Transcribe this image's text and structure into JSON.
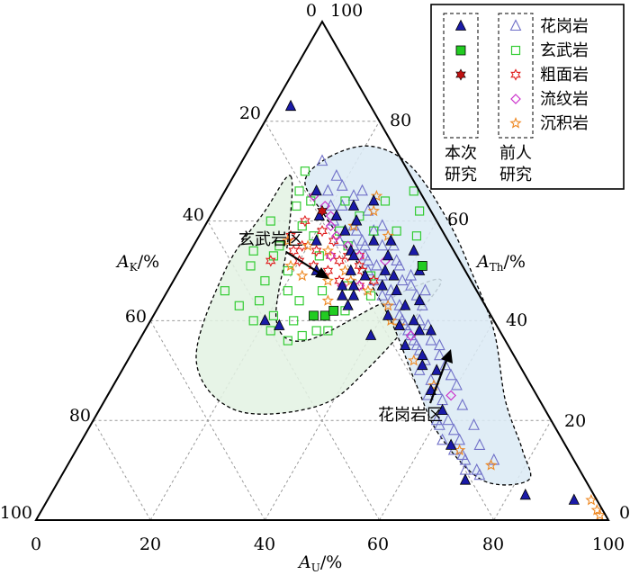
{
  "chart_data": {
    "type": "scatter",
    "subtype": "ternary",
    "axes": {
      "bottom": {
        "label_main": "A",
        "label_sub": "U",
        "label_suffix": "/%",
        "ticks": [
          "0",
          "20",
          "40",
          "60",
          "80",
          "100"
        ]
      },
      "left": {
        "label_main": "A",
        "label_sub": "K",
        "label_suffix": "/%",
        "ticks": [
          "0",
          "20",
          "40",
          "60",
          "80",
          "100"
        ]
      },
      "right": {
        "label_main": "A",
        "label_sub": "Th",
        "label_suffix": "/%",
        "ticks": [
          "0",
          "20",
          "40",
          "60",
          "80",
          "100"
        ]
      }
    },
    "legend": {
      "placement": "top-right",
      "groups": [
        {
          "title_line1": "本次",
          "title_line2": "研究"
        },
        {
          "title_line1": "前人",
          "title_line2": "研究"
        }
      ],
      "entries": [
        "花岗岩",
        "玄武岩",
        "粗面岩",
        "流纹岩",
        "沉积岩"
      ]
    },
    "regions": [
      {
        "name": "玄武岩区",
        "color": "#e3f2e3",
        "stroke": "#000000",
        "polygon": [
          [
            10,
            69
          ],
          [
            16,
            56
          ],
          [
            22,
            40
          ],
          [
            29,
            36
          ],
          [
            38,
            43
          ],
          [
            43,
            47
          ],
          [
            47,
            47
          ],
          [
            43,
            31
          ],
          [
            38,
            23
          ],
          [
            24,
            22
          ],
          [
            12,
            32
          ],
          [
            8,
            50
          ],
          [
            9,
            62
          ]
        ]
      },
      {
        "name": "花岗岩区",
        "color": "#dbeaf5",
        "stroke": "#000000",
        "polygon": [
          [
            15,
            73
          ],
          [
            13,
            68
          ],
          [
            20,
            61
          ],
          [
            31,
            51
          ],
          [
            42,
            40
          ],
          [
            53,
            27
          ],
          [
            62,
            17
          ],
          [
            74,
            8
          ],
          [
            82,
            8
          ],
          [
            78,
            14
          ],
          [
            70,
            24
          ],
          [
            61,
            38
          ],
          [
            51,
            50
          ],
          [
            42,
            60
          ],
          [
            30,
            71
          ],
          [
            21,
            75
          ]
        ]
      }
    ],
    "series": [
      {
        "name": "花岗岩",
        "group": "本次研究",
        "marker": "filled-triangle",
        "color": "#1a1aa8",
        "points": [
          [
            3,
            83
          ],
          [
            16,
            66
          ],
          [
            19,
            61
          ],
          [
            22,
            61
          ],
          [
            25,
            58
          ],
          [
            28,
            54
          ],
          [
            33,
            49
          ],
          [
            37,
            47
          ],
          [
            43,
            43
          ],
          [
            48,
            38
          ],
          [
            55,
            30
          ],
          [
            60,
            22
          ],
          [
            65,
            15
          ],
          [
            71,
            8
          ],
          [
            83,
            5
          ],
          [
            92,
            4
          ],
          [
            29,
            53
          ],
          [
            30,
            50
          ],
          [
            31,
            56
          ],
          [
            35,
            53
          ],
          [
            36,
            50
          ],
          [
            38,
            49
          ],
          [
            40,
            46
          ],
          [
            33,
            45
          ],
          [
            41,
            41
          ],
          [
            46,
            40
          ],
          [
            44,
            39
          ],
          [
            51,
            33
          ],
          [
            52,
            31
          ],
          [
            56,
            26
          ],
          [
            39,
            54
          ],
          [
            26,
            60
          ],
          [
            24,
            50
          ],
          [
            21,
            56
          ],
          [
            42,
            50
          ],
          [
            45,
            44
          ],
          [
            34,
            56
          ],
          [
            31,
            45
          ],
          [
            50,
            38
          ],
          [
            32,
            47
          ],
          [
            23,
            39
          ],
          [
            20,
            40
          ],
          [
            24,
            63
          ],
          [
            27,
            64
          ],
          [
            40,
            37
          ],
          [
            47,
            35
          ],
          [
            30,
            47
          ],
          [
            33,
            43
          ]
        ]
      },
      {
        "name": "花岗岩",
        "group": "前人研究",
        "marker": "open-triangle",
        "color": "#7070c8",
        "points": [
          [
            14,
            72
          ],
          [
            18,
            66
          ],
          [
            20,
            63
          ],
          [
            22,
            60
          ],
          [
            25,
            56
          ],
          [
            28,
            55
          ],
          [
            31,
            53
          ],
          [
            33,
            50
          ],
          [
            35,
            48
          ],
          [
            38,
            45
          ],
          [
            40,
            44
          ],
          [
            43,
            41
          ],
          [
            45,
            39
          ],
          [
            48,
            36
          ],
          [
            50,
            34
          ],
          [
            52,
            32
          ],
          [
            55,
            28
          ],
          [
            57,
            26
          ],
          [
            59,
            24
          ],
          [
            62,
            20
          ],
          [
            64,
            18
          ],
          [
            66,
            16
          ],
          [
            69,
            12
          ],
          [
            72,
            10
          ],
          [
            74,
            12
          ],
          [
            70,
            15
          ],
          [
            67,
            19
          ],
          [
            63,
            23
          ],
          [
            60,
            27
          ],
          [
            56,
            31
          ],
          [
            53,
            35
          ],
          [
            49,
            39
          ],
          [
            46,
            43
          ],
          [
            42,
            47
          ],
          [
            38,
            51
          ],
          [
            35,
            55
          ],
          [
            31,
            59
          ],
          [
            27,
            62
          ],
          [
            24,
            66
          ],
          [
            22,
            63
          ],
          [
            26,
            59
          ],
          [
            29,
            56
          ],
          [
            32,
            52
          ],
          [
            36,
            49
          ],
          [
            39,
            46
          ],
          [
            42,
            43
          ],
          [
            46,
            38
          ],
          [
            49,
            35
          ],
          [
            52,
            30
          ],
          [
            56,
            25
          ],
          [
            61,
            19
          ],
          [
            66,
            14
          ],
          [
            70,
            10
          ],
          [
            58,
            29
          ],
          [
            54,
            33
          ],
          [
            51,
            36
          ],
          [
            47,
            40
          ],
          [
            44,
            45
          ],
          [
            40,
            48
          ],
          [
            37,
            52
          ],
          [
            33,
            55
          ],
          [
            30,
            58
          ],
          [
            27,
            58
          ],
          [
            30,
            55
          ],
          [
            34,
            51
          ],
          [
            44,
            40
          ],
          [
            47,
            37
          ],
          [
            60,
            20
          ],
          [
            63,
            16
          ],
          [
            68,
            13
          ],
          [
            73,
            9
          ],
          [
            45,
            46
          ],
          [
            41,
            49
          ],
          [
            18,
            69
          ],
          [
            23,
            65
          ],
          [
            20,
            67
          ]
        ]
      },
      {
        "name": "玄武岩",
        "group": "本次研究",
        "marker": "filled-square",
        "color": "#22cc22",
        "points": [
          [
            42,
            51
          ],
          [
            28,
            41
          ],
          [
            30,
            41
          ],
          [
            31,
            42
          ]
        ]
      },
      {
        "name": "玄武岩",
        "group": "前人研究",
        "marker": "open-square",
        "color": "#33cc33",
        "points": [
          [
            12,
            70
          ],
          [
            13,
            66
          ],
          [
            14,
            63
          ],
          [
            11,
            60
          ],
          [
            15,
            55
          ],
          [
            12,
            51
          ],
          [
            16,
            48
          ],
          [
            10,
            46
          ],
          [
            14,
            43
          ],
          [
            18,
            40
          ],
          [
            22,
            38
          ],
          [
            26,
            36
          ],
          [
            28,
            37
          ],
          [
            32,
            38
          ],
          [
            25,
            40
          ],
          [
            21,
            41
          ],
          [
            17,
            44
          ],
          [
            19,
            50
          ],
          [
            23,
            53
          ],
          [
            27,
            55
          ],
          [
            30,
            58
          ],
          [
            34,
            58
          ],
          [
            38,
            57
          ],
          [
            36,
            62
          ],
          [
            33,
            66
          ],
          [
            29,
            64
          ],
          [
            24,
            44
          ],
          [
            27,
            46
          ],
          [
            31,
            47
          ],
          [
            34,
            49
          ],
          [
            36,
            45
          ],
          [
            21,
            46
          ],
          [
            15,
            53
          ],
          [
            11,
            54
          ],
          [
            17,
            59
          ],
          [
            20,
            57
          ],
          [
            24,
            58
          ],
          [
            26,
            61
          ],
          [
            30,
            38
          ],
          [
            33,
            42
          ],
          [
            16,
            64
          ],
          [
            22,
            64
          ]
        ]
      },
      {
        "name": "粗面岩",
        "group": "本次研究",
        "marker": "filled-star6",
        "color": "#c01010",
        "points": [
          [
            19,
            62
          ]
        ]
      },
      {
        "name": "粗面岩",
        "group": "前人研究",
        "marker": "open-star6",
        "color": "#e02020",
        "points": [
          [
            16,
            57
          ],
          [
            19,
            55
          ],
          [
            22,
            54
          ],
          [
            25,
            53
          ],
          [
            28,
            53
          ],
          [
            31,
            51
          ],
          [
            20,
            52
          ],
          [
            23,
            51
          ],
          [
            26,
            50
          ],
          [
            29,
            48
          ],
          [
            32,
            50
          ],
          [
            35,
            48
          ],
          [
            18,
            54
          ],
          [
            24,
            56
          ],
          [
            27,
            52
          ],
          [
            21,
            58
          ],
          [
            15,
            52
          ],
          [
            30,
            53
          ],
          [
            33,
            47
          ],
          [
            17,
            60
          ]
        ]
      },
      {
        "name": "流纹岩",
        "group": "前人研究",
        "marker": "open-diamond",
        "color": "#cc33cc",
        "points": [
          [
            16,
            65
          ],
          [
            19,
            63
          ],
          [
            21,
            61
          ],
          [
            24,
            57
          ],
          [
            27,
            55
          ],
          [
            30,
            53
          ],
          [
            33,
            47
          ],
          [
            47,
            37
          ],
          [
            25,
            53
          ],
          [
            30,
            47
          ],
          [
            60,
            25
          ],
          [
            22,
            59
          ],
          [
            35,
            52
          ]
        ]
      },
      {
        "name": "沉积岩",
        "group": "前人研究",
        "marker": "open-star5",
        "color": "#ee8822",
        "points": [
          [
            27,
            65
          ],
          [
            28,
            62
          ],
          [
            26,
            59
          ],
          [
            19,
            51
          ],
          [
            22,
            49
          ],
          [
            29,
            50
          ],
          [
            35,
            46
          ],
          [
            33,
            57
          ],
          [
            42,
            40
          ],
          [
            44,
            39
          ],
          [
            50,
            32
          ],
          [
            56,
            27
          ],
          [
            67,
            14
          ],
          [
            74,
            11
          ],
          [
            95,
            4
          ],
          [
            97,
            2
          ],
          [
            98,
            1
          ],
          [
            20,
            55
          ],
          [
            24,
            54
          ],
          [
            27,
            48
          ],
          [
            31,
            48
          ],
          [
            16,
            56
          ],
          [
            29,
            44
          ],
          [
            40,
            43
          ]
        ]
      }
    ]
  }
}
